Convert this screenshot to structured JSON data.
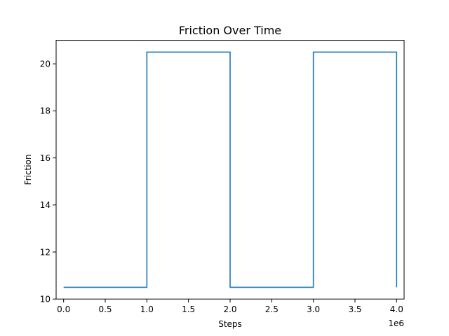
{
  "chart_data": {
    "type": "line",
    "title": "Friction Over Time",
    "xlabel": "Steps",
    "ylabel": "Friction",
    "x_offset_label": "1e6",
    "xlim": [
      -90000,
      4090000
    ],
    "ylim": [
      10,
      21
    ],
    "x_ticks": [
      0,
      500000,
      1000000,
      1500000,
      2000000,
      2500000,
      3000000,
      3500000,
      4000000
    ],
    "x_tick_labels": [
      "0.0",
      "0.5",
      "1.0",
      "1.5",
      "2.0",
      "2.5",
      "3.0",
      "3.5",
      "4.0"
    ],
    "y_ticks": [
      10,
      12,
      14,
      16,
      18,
      20
    ],
    "y_tick_labels": [
      "10",
      "12",
      "14",
      "16",
      "18",
      "20"
    ],
    "grid": false,
    "series": [
      {
        "color": "#1f77b4",
        "x": [
          0,
          1000000,
          1000000,
          2000000,
          2000000,
          3000000,
          3000000,
          4000000,
          4000000
        ],
        "y": [
          10.5,
          10.5,
          20.5,
          20.5,
          10.5,
          10.5,
          20.5,
          20.5,
          10.5
        ]
      }
    ]
  }
}
